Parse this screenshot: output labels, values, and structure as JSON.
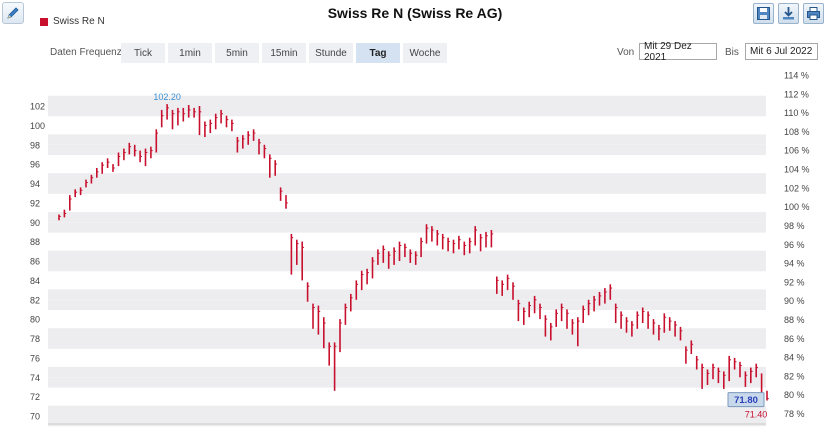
{
  "title": "Swiss Re N (Swiss Re AG)",
  "legend_label": "Swiss Re N",
  "controls": {
    "frequency_label": "Daten Frequenz",
    "frequencies": [
      {
        "label": "Tick",
        "active": false
      },
      {
        "label": "1min",
        "active": false
      },
      {
        "label": "5min",
        "active": false
      },
      {
        "label": "15min",
        "active": false
      },
      {
        "label": "Stunde",
        "active": false
      },
      {
        "label": "Tag",
        "active": true
      },
      {
        "label": "Woche",
        "active": false
      }
    ],
    "from_label": "Von",
    "from_value": "Mit 29 Dez 2021",
    "to_label": "Bis",
    "to_value": "Mit 6 Jul 2022"
  },
  "toolbar_icons": [
    "edit-icon",
    "save-icon",
    "download-icon",
    "print-icon"
  ],
  "colors": {
    "series": "#c8102e",
    "high_label": "#3a8fd0",
    "band": "#ededf0"
  },
  "chart_data": {
    "type": "ohlc",
    "series_name": "Swiss Re N",
    "y_left": {
      "min": 70,
      "max": 102,
      "ticks": [
        70,
        72,
        74,
        76,
        78,
        80,
        82,
        84,
        86,
        88,
        90,
        92,
        94,
        96,
        98,
        100,
        102
      ]
    },
    "y_right": {
      "ticks": [
        "78 %",
        "80 %",
        "82 %",
        "84 %",
        "86 %",
        "88 %",
        "90 %",
        "92 %",
        "94 %",
        "96 %",
        "98 %",
        "100 %",
        "102 %",
        "104 %",
        "106 %",
        "108 %",
        "110 %",
        "112 %",
        "114 %"
      ]
    },
    "grid": "alternating-bands",
    "annotations": {
      "high": "102.20",
      "last": "71.80",
      "low": "71.40"
    },
    "bars": [
      [
        90.2,
        90.8,
        90.6
      ],
      [
        90.5,
        91.3,
        90.9
      ],
      [
        91.2,
        92.8,
        92.4
      ],
      [
        92.6,
        93.4,
        93.1
      ],
      [
        92.8,
        93.6,
        93.3
      ],
      [
        93.6,
        94.4,
        94.1
      ],
      [
        94.0,
        94.9,
        94.6
      ],
      [
        94.6,
        95.6,
        95.2
      ],
      [
        95.0,
        96.2,
        95.9
      ],
      [
        95.6,
        96.6,
        96.2
      ],
      [
        95.2,
        96.0,
        95.6
      ],
      [
        95.8,
        97.2,
        96.8
      ],
      [
        96.4,
        97.6,
        97.2
      ],
      [
        97.0,
        98.2,
        97.8
      ],
      [
        96.8,
        98.0,
        97.4
      ],
      [
        96.2,
        97.4,
        96.8
      ],
      [
        95.8,
        97.6,
        97.2
      ],
      [
        96.6,
        97.8,
        97.4
      ],
      [
        97.2,
        99.6,
        99.2
      ],
      [
        99.8,
        101.6,
        101.0
      ],
      [
        100.6,
        102.2,
        101.8
      ],
      [
        99.6,
        101.6,
        101.2
      ],
      [
        100.0,
        101.8,
        101.4
      ],
      [
        100.4,
        101.8,
        101.2
      ],
      [
        100.8,
        102.1,
        101.6
      ],
      [
        100.8,
        101.8,
        101.4
      ],
      [
        99.0,
        102.0,
        101.4
      ],
      [
        98.8,
        100.4,
        100.0
      ],
      [
        99.2,
        100.6,
        100.2
      ],
      [
        99.6,
        101.2,
        100.8
      ],
      [
        100.2,
        101.6,
        101.2
      ],
      [
        99.8,
        101.0,
        100.6
      ],
      [
        99.4,
        100.6,
        100.2
      ],
      [
        97.2,
        98.8,
        98.4
      ],
      [
        97.6,
        99.0,
        98.6
      ],
      [
        98.0,
        99.4,
        99.0
      ],
      [
        98.4,
        99.6,
        99.2
      ],
      [
        97.0,
        98.6,
        98.2
      ],
      [
        96.6,
        98.0,
        97.6
      ],
      [
        94.6,
        97.0,
        96.6
      ],
      [
        94.8,
        96.4,
        96.0
      ],
      [
        92.2,
        93.6,
        93.2
      ],
      [
        91.4,
        92.8,
        92.0
      ],
      [
        84.6,
        88.8,
        88.4
      ],
      [
        85.6,
        88.2,
        87.8
      ],
      [
        84.0,
        88.0,
        87.4
      ],
      [
        81.8,
        83.8,
        83.4
      ],
      [
        79.0,
        81.6,
        81.2
      ],
      [
        78.4,
        81.4,
        80.8
      ],
      [
        77.0,
        80.2,
        79.6
      ],
      [
        75.2,
        77.6,
        77.2
      ],
      [
        72.6,
        77.6,
        77.2
      ],
      [
        76.6,
        80.0,
        79.6
      ],
      [
        79.4,
        81.6,
        81.2
      ],
      [
        80.8,
        82.6,
        82.2
      ],
      [
        82.0,
        84.0,
        83.6
      ],
      [
        83.0,
        85.0,
        84.6
      ],
      [
        83.6,
        85.2,
        84.8
      ],
      [
        84.2,
        86.4,
        86.0
      ],
      [
        85.6,
        87.2,
        86.8
      ],
      [
        85.8,
        87.6,
        87.2
      ],
      [
        85.2,
        87.0,
        86.6
      ],
      [
        85.6,
        87.4,
        87.0
      ],
      [
        86.0,
        88.0,
        87.6
      ],
      [
        86.4,
        87.8,
        87.4
      ],
      [
        85.8,
        87.2,
        86.8
      ],
      [
        85.6,
        87.0,
        86.6
      ],
      [
        86.4,
        88.4,
        88.0
      ],
      [
        87.8,
        89.8,
        89.4
      ],
      [
        88.0,
        89.6,
        89.2
      ],
      [
        87.6,
        89.2,
        88.8
      ],
      [
        87.2,
        88.8,
        88.4
      ],
      [
        87.0,
        88.4,
        88.0
      ],
      [
        86.8,
        88.2,
        87.8
      ],
      [
        87.2,
        88.6,
        88.2
      ],
      [
        86.6,
        88.0,
        87.6
      ],
      [
        86.8,
        88.4,
        88.0
      ],
      [
        87.6,
        89.6,
        89.2
      ],
      [
        87.0,
        88.8,
        88.4
      ],
      [
        87.4,
        89.0,
        88.6
      ],
      [
        87.4,
        89.2,
        88.8
      ],
      [
        82.6,
        84.4,
        84.0
      ],
      [
        82.4,
        84.0,
        83.6
      ],
      [
        83.0,
        84.6,
        84.2
      ],
      [
        82.0,
        83.8,
        83.4
      ],
      [
        79.8,
        82.0,
        81.6
      ],
      [
        79.4,
        81.2,
        80.8
      ],
      [
        80.2,
        81.8,
        81.4
      ],
      [
        80.6,
        82.4,
        82.0
      ],
      [
        80.0,
        81.6,
        81.2
      ],
      [
        78.2,
        80.4,
        80.0
      ],
      [
        77.8,
        79.6,
        79.2
      ],
      [
        79.2,
        81.0,
        80.6
      ],
      [
        79.8,
        81.6,
        81.2
      ],
      [
        79.0,
        81.0,
        80.6
      ],
      [
        78.4,
        80.0,
        79.6
      ],
      [
        77.2,
        80.2,
        79.8
      ],
      [
        79.6,
        81.4,
        81.0
      ],
      [
        80.4,
        82.0,
        81.6
      ],
      [
        80.8,
        82.4,
        82.0
      ],
      [
        81.4,
        82.8,
        82.4
      ],
      [
        81.6,
        83.2,
        82.8
      ],
      [
        82.0,
        83.6,
        83.2
      ],
      [
        79.6,
        81.6,
        81.2
      ],
      [
        79.0,
        80.8,
        80.4
      ],
      [
        78.6,
        80.2,
        79.8
      ],
      [
        78.2,
        79.8,
        79.4
      ],
      [
        79.0,
        80.8,
        80.4
      ],
      [
        79.6,
        81.2,
        80.8
      ],
      [
        79.0,
        80.8,
        80.4
      ],
      [
        78.4,
        80.0,
        79.6
      ],
      [
        77.8,
        79.4,
        79.0
      ],
      [
        78.6,
        80.6,
        80.2
      ],
      [
        78.8,
        80.2,
        79.8
      ],
      [
        78.2,
        79.8,
        79.4
      ],
      [
        77.8,
        79.2,
        78.8
      ],
      [
        75.4,
        77.2,
        76.8
      ],
      [
        76.4,
        77.8,
        77.4
      ],
      [
        74.8,
        76.2,
        75.8
      ],
      [
        72.8,
        75.4,
        75.0
      ],
      [
        73.2,
        74.8,
        74.4
      ],
      [
        73.8,
        75.4,
        75.0
      ],
      [
        73.4,
        75.0,
        74.6
      ],
      [
        72.8,
        74.6,
        74.2
      ],
      [
        73.6,
        76.2,
        75.8
      ],
      [
        74.8,
        76.0,
        75.6
      ],
      [
        74.0,
        75.6,
        75.2
      ],
      [
        73.0,
        74.6,
        74.2
      ],
      [
        73.4,
        75.0,
        74.6
      ],
      [
        74.0,
        75.4,
        75.0
      ],
      [
        71.4,
        74.4,
        71.8
      ],
      [
        71.6,
        72.6,
        71.8
      ]
    ]
  }
}
